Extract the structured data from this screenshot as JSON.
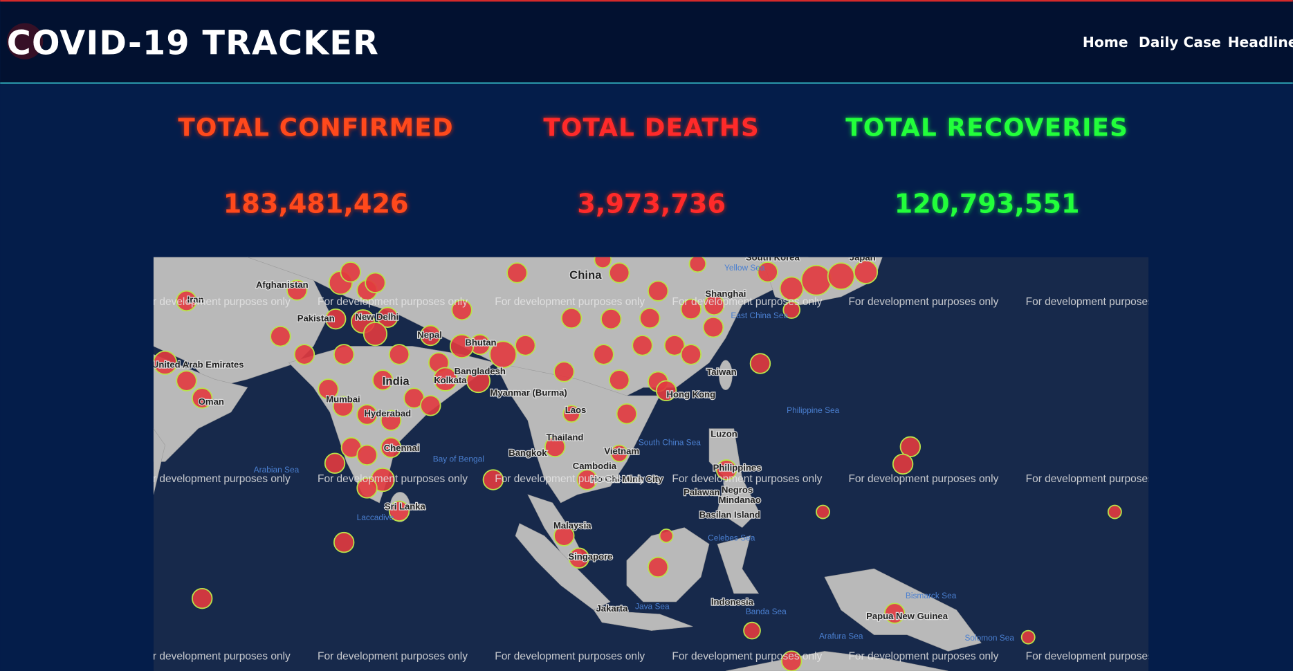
{
  "header": {
    "title": "COVID-19 TRACKER",
    "nav": [
      "Home",
      "Daily Case",
      "Headlines"
    ]
  },
  "stats": [
    {
      "label": "TOTAL CONFIRMED",
      "value": "183,481,426"
    },
    {
      "label": "TOTAL DEATHS",
      "value": "3,973,736"
    },
    {
      "label": "TOTAL RECOVERIES",
      "value": "120,793,551"
    }
  ],
  "map": {
    "watermark": "For development purposes only",
    "labels": [
      "Afghanistan",
      "Iran",
      "Pakistan",
      "New Delhi",
      "Nepal",
      "Bhutan",
      "India",
      "Bangladesh",
      "Kolkata",
      "Myanmar (Burma)",
      "China",
      "South Korea",
      "Japan",
      "Shanghai",
      "Taiwan",
      "Hong Kong",
      "Laos",
      "Thailand",
      "Vietnam",
      "Cambodia",
      "Ho Chi Minh City",
      "Luzon",
      "Philippines",
      "Palawan",
      "Negros",
      "Mindanao",
      "Basilan Island",
      "Malaysia",
      "Singapore",
      "Indonesia",
      "Jakarta",
      "Papua New Guinea",
      "Sri Lanka",
      "Chennai",
      "Hyderabad",
      "Mumbai",
      "Oman",
      "United Arab Emirates",
      "Bangkok"
    ],
    "seas": [
      "Yellow Sea",
      "East China Sea",
      "Philippine Sea",
      "South China Sea",
      "Bay of Bengal",
      "Arabian Sea",
      "Laccadive",
      "Celebes Sea",
      "Java Sea",
      "Banda Sea",
      "Arafura Sea",
      "Bismarck Sea",
      "Solomon Sea"
    ]
  }
}
